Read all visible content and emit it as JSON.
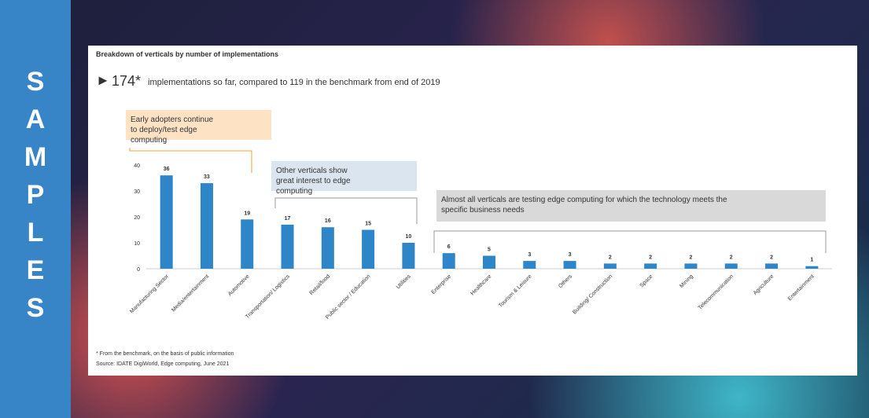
{
  "sidebar_label": "SAMPLES",
  "chart_data": {
    "type": "bar",
    "title": "Breakdown of verticals by number of implementations",
    "headline_number": "174*",
    "headline_text": "implementations so far, compared to 119 in the benchmark from end of 2019",
    "categories": [
      "Manufacturing Sector",
      "Media/entertainment",
      "Automotive",
      "Transportation/ Logistics",
      "Retail/food",
      "Public sector / Education",
      "Utilities",
      "Enterprise",
      "Healthcare",
      "Tourism & Leisure",
      "Others",
      "Building/ Construction",
      "Space",
      "Mining",
      "Telecommunication",
      "Agriculture",
      "Entertainment"
    ],
    "values": [
      36,
      33,
      19,
      17,
      16,
      15,
      10,
      6,
      5,
      3,
      3,
      2,
      2,
      2,
      2,
      2,
      1
    ],
    "color": "#2e86c9",
    "ylim": [
      0,
      40
    ],
    "yticks": [
      0,
      10,
      20,
      30,
      40
    ],
    "grid": false,
    "annotations": [
      "Early adopters continue to deploy/test edge computing",
      "Other verticals show great interest to edge computing",
      "Almost all verticals are testing edge computing for which the technology meets the specific business needs"
    ],
    "footnote": "* From the benchmark, on the basis of public information",
    "source": "Source: IDATE DigiWorld, Edge computing, June 2021"
  }
}
